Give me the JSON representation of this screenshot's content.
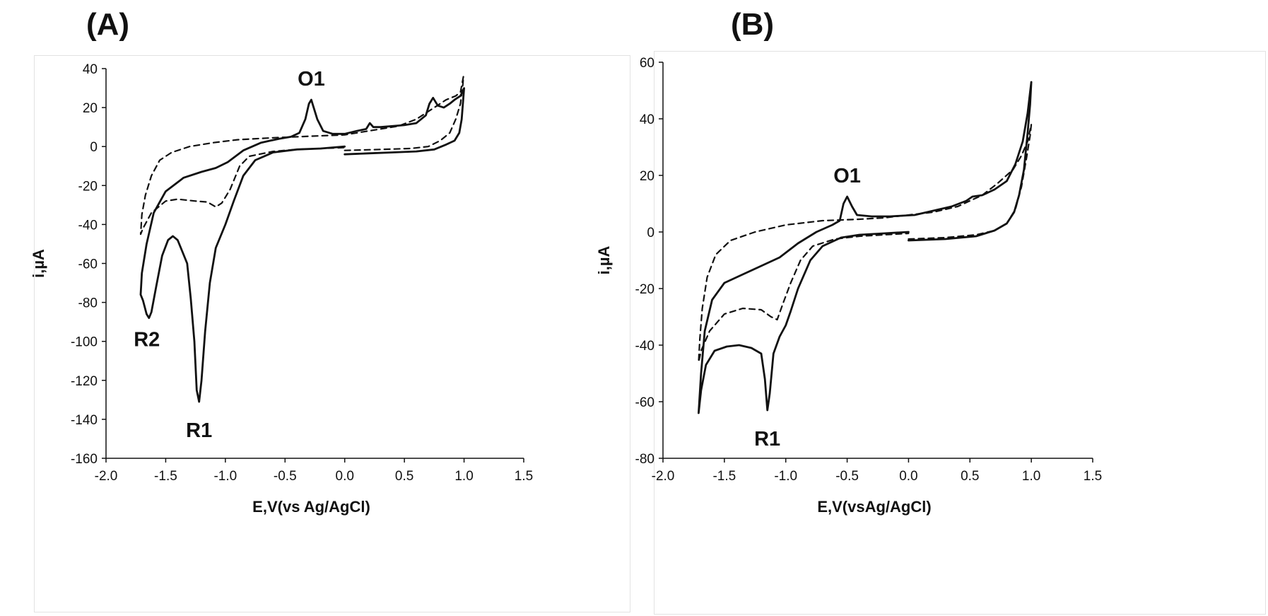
{
  "chart_data": [
    {
      "type": "line",
      "panel_label": "(A)",
      "xlabel": "E,V(vs Ag/AgCl)",
      "ylabel": "i,µA",
      "xlim": [
        -2.0,
        1.5
      ],
      "ylim": [
        -160,
        40
      ],
      "xticks": [
        -2.0,
        -1.5,
        -1.0,
        -0.5,
        0.0,
        0.5,
        1.0,
        1.5
      ],
      "xtick_labels": [
        "-2.0",
        "-1.5",
        "-1.0",
        "-0.5",
        "0.0",
        "0.5",
        "1.0",
        "1.5"
      ],
      "yticks": [
        -160,
        -140,
        -120,
        -100,
        -80,
        -60,
        -40,
        -20,
        0,
        20,
        40
      ],
      "grid": false,
      "annotations": [
        {
          "text": "O1",
          "x": -0.28,
          "y": 24
        },
        {
          "text": "R1",
          "x": -1.22,
          "y": -131
        },
        {
          "text": "R2",
          "x": -1.64,
          "y": -88
        }
      ],
      "series": [
        {
          "style": "solid",
          "points": [
            [
              0,
              -4
            ],
            [
              0.2,
              -3.5
            ],
            [
              0.4,
              -3
            ],
            [
              0.6,
              -2.5
            ],
            [
              0.75,
              -1.5
            ],
            [
              0.85,
              1
            ],
            [
              0.92,
              3
            ],
            [
              0.96,
              7
            ],
            [
              0.98,
              14
            ],
            [
              1.0,
              30
            ],
            [
              0.97,
              26
            ],
            [
              0.92,
              24
            ],
            [
              0.88,
              22
            ],
            [
              0.83,
              20
            ],
            [
              0.78,
              21
            ],
            [
              0.74,
              25
            ],
            [
              0.71,
              22
            ],
            [
              0.68,
              16
            ],
            [
              0.6,
              12
            ],
            [
              0.5,
              11
            ],
            [
              0.4,
              10.5
            ],
            [
              0.3,
              10
            ],
            [
              0.24,
              10
            ],
            [
              0.21,
              12
            ],
            [
              0.18,
              9
            ],
            [
              0.1,
              8
            ],
            [
              0,
              6.5
            ],
            [
              -0.1,
              6.5
            ],
            [
              -0.18,
              8
            ],
            [
              -0.23,
              14
            ],
            [
              -0.27,
              22
            ],
            [
              -0.28,
              24
            ],
            [
              -0.3,
              22
            ],
            [
              -0.33,
              14
            ],
            [
              -0.38,
              7
            ],
            [
              -0.45,
              5
            ],
            [
              -0.55,
              4
            ],
            [
              -0.7,
              2
            ],
            [
              -0.85,
              -2
            ],
            [
              -0.98,
              -8
            ],
            [
              -1.08,
              -11
            ],
            [
              -1.2,
              -13
            ],
            [
              -1.35,
              -16
            ],
            [
              -1.5,
              -23
            ],
            [
              -1.6,
              -34
            ],
            [
              -1.66,
              -50
            ],
            [
              -1.7,
              -65
            ],
            [
              -1.71,
              -76
            ],
            [
              -1.69,
              -79
            ],
            [
              -1.66,
              -86
            ],
            [
              -1.64,
              -88
            ],
            [
              -1.62,
              -85
            ],
            [
              -1.58,
              -72
            ],
            [
              -1.53,
              -56
            ],
            [
              -1.48,
              -48
            ],
            [
              -1.44,
              -46
            ],
            [
              -1.4,
              -48
            ],
            [
              -1.36,
              -54
            ],
            [
              -1.32,
              -60
            ],
            [
              -1.29,
              -78
            ],
            [
              -1.26,
              -100
            ],
            [
              -1.24,
              -125
            ],
            [
              -1.22,
              -131
            ],
            [
              -1.2,
              -120
            ],
            [
              -1.17,
              -95
            ],
            [
              -1.13,
              -70
            ],
            [
              -1.08,
              -52
            ],
            [
              -1.0,
              -40
            ],
            [
              -0.93,
              -28
            ],
            [
              -0.85,
              -15
            ],
            [
              -0.75,
              -7
            ],
            [
              -0.6,
              -3
            ],
            [
              -0.4,
              -1.5
            ],
            [
              -0.2,
              -1
            ],
            [
              0,
              0
            ]
          ]
        },
        {
          "style": "dashed",
          "points": [
            [
              0,
              -2
            ],
            [
              0.3,
              -1.5
            ],
            [
              0.55,
              -1
            ],
            [
              0.7,
              0
            ],
            [
              0.8,
              3
            ],
            [
              0.88,
              7
            ],
            [
              0.93,
              14
            ],
            [
              0.97,
              22
            ],
            [
              0.99,
              32
            ],
            [
              0.995,
              36
            ],
            [
              0.97,
              28
            ],
            [
              0.93,
              26
            ],
            [
              0.85,
              24
            ],
            [
              0.75,
              20
            ],
            [
              0.6,
              14
            ],
            [
              0.45,
              10.5
            ],
            [
              0.3,
              9
            ],
            [
              0.1,
              7
            ],
            [
              0,
              6
            ],
            [
              -0.2,
              5.5
            ],
            [
              -0.4,
              5
            ],
            [
              -0.6,
              4.5
            ],
            [
              -0.9,
              3.5
            ],
            [
              -1.1,
              2
            ],
            [
              -1.3,
              0
            ],
            [
              -1.45,
              -3
            ],
            [
              -1.55,
              -7
            ],
            [
              -1.62,
              -15
            ],
            [
              -1.67,
              -25
            ],
            [
              -1.7,
              -35
            ],
            [
              -1.71,
              -45
            ],
            [
              -1.69,
              -42
            ],
            [
              -1.62,
              -34
            ],
            [
              -1.5,
              -28
            ],
            [
              -1.4,
              -27
            ],
            [
              -1.25,
              -28
            ],
            [
              -1.15,
              -28.5
            ],
            [
              -1.08,
              -31
            ],
            [
              -1.03,
              -29
            ],
            [
              -0.96,
              -22
            ],
            [
              -0.88,
              -10
            ],
            [
              -0.8,
              -5
            ],
            [
              -0.6,
              -2.5
            ],
            [
              -0.4,
              -1.5
            ],
            [
              -0.2,
              -1
            ],
            [
              0,
              -0.5
            ]
          ]
        }
      ]
    },
    {
      "type": "line",
      "panel_label": "(B)",
      "xlabel": "E,V(vsAg/AgCl)",
      "ylabel": "i,µA",
      "xlim": [
        -2.0,
        1.5
      ],
      "ylim": [
        -80,
        60
      ],
      "xticks": [
        -2.0,
        -1.5,
        -1.0,
        -0.5,
        0.0,
        0.5,
        1.0,
        1.5
      ],
      "xtick_labels": [
        "-2.0",
        "-1.5",
        "-1.0",
        "-0.5",
        "0.0",
        "0.5",
        "1.0",
        "1.5"
      ],
      "yticks": [
        -80,
        -60,
        -40,
        -20,
        0,
        20,
        40,
        60
      ],
      "grid": false,
      "annotations": [
        {
          "text": "O1",
          "x": -0.5,
          "y": 12.5
        },
        {
          "text": "R1",
          "x": -1.15,
          "y": -63
        }
      ],
      "series": [
        {
          "style": "solid",
          "points": [
            [
              0,
              -3
            ],
            [
              0.3,
              -2.5
            ],
            [
              0.55,
              -1.5
            ],
            [
              0.7,
              0.5
            ],
            [
              0.8,
              3
            ],
            [
              0.86,
              7
            ],
            [
              0.9,
              13
            ],
            [
              0.94,
              22
            ],
            [
              0.97,
              35
            ],
            [
              0.99,
              45
            ],
            [
              1.0,
              53
            ],
            [
              0.97,
              42
            ],
            [
              0.93,
              32
            ],
            [
              0.87,
              24
            ],
            [
              0.8,
              18
            ],
            [
              0.7,
              15
            ],
            [
              0.6,
              13
            ],
            [
              0.52,
              12.5
            ],
            [
              0.47,
              11
            ],
            [
              0.35,
              9
            ],
            [
              0.2,
              7.5
            ],
            [
              0.05,
              6
            ],
            [
              -0.15,
              5.5
            ],
            [
              -0.3,
              5.5
            ],
            [
              -0.42,
              6
            ],
            [
              -0.46,
              9
            ],
            [
              -0.5,
              12.5
            ],
            [
              -0.53,
              10
            ],
            [
              -0.56,
              4
            ],
            [
              -0.62,
              2.5
            ],
            [
              -0.75,
              0
            ],
            [
              -0.9,
              -4
            ],
            [
              -1.05,
              -9
            ],
            [
              -1.2,
              -12
            ],
            [
              -1.35,
              -15
            ],
            [
              -1.5,
              -18
            ],
            [
              -1.6,
              -24
            ],
            [
              -1.66,
              -35
            ],
            [
              -1.69,
              -50
            ],
            [
              -1.71,
              -64
            ],
            [
              -1.69,
              -56
            ],
            [
              -1.65,
              -47
            ],
            [
              -1.58,
              -42
            ],
            [
              -1.48,
              -40.5
            ],
            [
              -1.38,
              -40
            ],
            [
              -1.28,
              -41
            ],
            [
              -1.2,
              -43
            ],
            [
              -1.17,
              -52
            ],
            [
              -1.15,
              -63
            ],
            [
              -1.13,
              -57
            ],
            [
              -1.1,
              -43
            ],
            [
              -1.05,
              -37
            ],
            [
              -1.0,
              -33
            ],
            [
              -0.96,
              -28
            ],
            [
              -0.9,
              -20
            ],
            [
              -0.8,
              -10
            ],
            [
              -0.7,
              -5
            ],
            [
              -0.55,
              -2
            ],
            [
              -0.4,
              -1
            ],
            [
              -0.2,
              -0.5
            ],
            [
              0,
              0
            ]
          ]
        },
        {
          "style": "dashed",
          "points": [
            [
              0,
              -2.5
            ],
            [
              0.3,
              -2
            ],
            [
              0.55,
              -1
            ],
            [
              0.7,
              0.5
            ],
            [
              0.8,
              3
            ],
            [
              0.87,
              8
            ],
            [
              0.92,
              16
            ],
            [
              0.96,
              26
            ],
            [
              0.99,
              34
            ],
            [
              1.0,
              38
            ],
            [
              0.97,
              32
            ],
            [
              0.92,
              27
            ],
            [
              0.85,
              22
            ],
            [
              0.72,
              17
            ],
            [
              0.6,
              13
            ],
            [
              0.4,
              9
            ],
            [
              0.2,
              7
            ],
            [
              0,
              6
            ],
            [
              -0.2,
              5
            ],
            [
              -0.4,
              4.5
            ],
            [
              -0.7,
              4
            ],
            [
              -1.0,
              2.5
            ],
            [
              -1.25,
              0
            ],
            [
              -1.45,
              -3
            ],
            [
              -1.57,
              -8
            ],
            [
              -1.64,
              -16
            ],
            [
              -1.68,
              -27
            ],
            [
              -1.7,
              -38
            ],
            [
              -1.71,
              -46
            ],
            [
              -1.69,
              -42
            ],
            [
              -1.62,
              -35
            ],
            [
              -1.5,
              -29
            ],
            [
              -1.35,
              -27
            ],
            [
              -1.2,
              -27.5
            ],
            [
              -1.12,
              -30
            ],
            [
              -1.07,
              -31
            ],
            [
              -1.02,
              -25
            ],
            [
              -0.96,
              -18
            ],
            [
              -0.88,
              -10
            ],
            [
              -0.78,
              -5
            ],
            [
              -0.6,
              -2.5
            ],
            [
              -0.4,
              -1.5
            ],
            [
              -0.2,
              -1
            ],
            [
              0,
              -0.5
            ]
          ]
        }
      ]
    }
  ]
}
